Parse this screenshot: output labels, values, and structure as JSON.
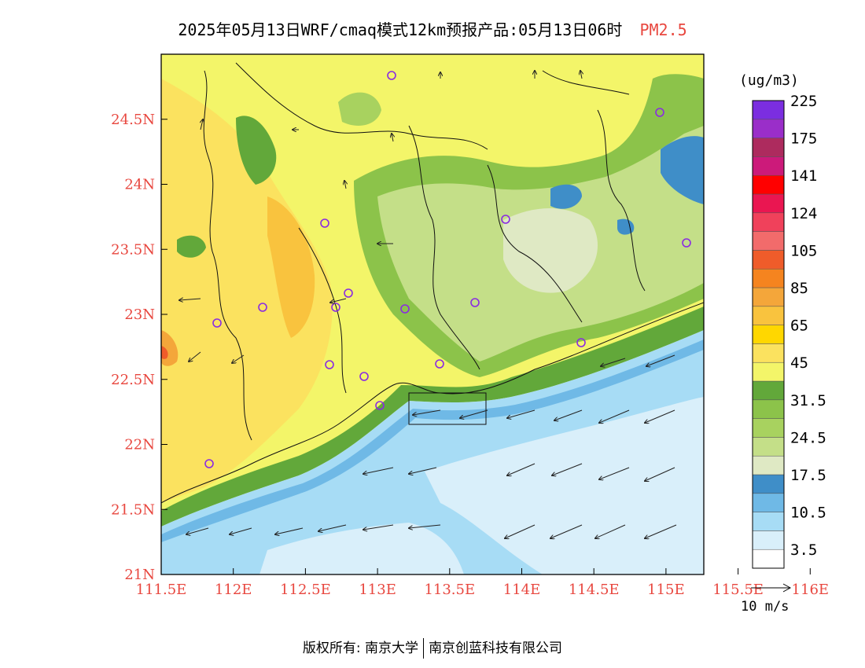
{
  "title": {
    "main": "2025年05月13日WRF/cmaq模式12km预报产品:05月13日06时",
    "variable": "PM2.5"
  },
  "axes": {
    "x_ticks": [
      "111.5E",
      "112E",
      "112.5E",
      "113E",
      "113.5E",
      "114E",
      "114.5E",
      "115E",
      "115.5E",
      "116E"
    ],
    "y_ticks": [
      "21N",
      "21.5N",
      "22N",
      "22.5N",
      "23N",
      "23.5N",
      "24N",
      "24.5N"
    ]
  },
  "colorbar": {
    "unit": "(ug/m3)",
    "bins": [
      {
        "color": "#ffffff"
      },
      {
        "color": "#d9effa"
      },
      {
        "color": "#a7dcf5"
      },
      {
        "color": "#6fb9e6"
      },
      {
        "color": "#3f8ec8"
      },
      {
        "color": "#dfe9c4"
      },
      {
        "color": "#c4df88"
      },
      {
        "color": "#a8d25f"
      },
      {
        "color": "#8cc34a"
      },
      {
        "color": "#62a83a"
      },
      {
        "color": "#f3f569"
      },
      {
        "color": "#fbe25f"
      },
      {
        "color": "#ffd700"
      },
      {
        "color": "#f9c33e"
      },
      {
        "color": "#f4a63a"
      },
      {
        "color": "#f5841f"
      },
      {
        "color": "#ef5c2a"
      },
      {
        "color": "#f26b6b"
      },
      {
        "color": "#f0415b"
      },
      {
        "color": "#ea1651"
      },
      {
        "color": "#ff0000"
      },
      {
        "color": "#cc1a7a"
      },
      {
        "color": "#ad2b5e"
      },
      {
        "color": "#9a2ec9"
      },
      {
        "color": "#7b2ee0"
      }
    ],
    "labels": [
      "3.5",
      "10.5",
      "17.5",
      "24.5",
      "31.5",
      "45",
      "65",
      "85",
      "105",
      "124",
      "141",
      "175",
      "225"
    ]
  },
  "wind_reference": {
    "label": "10 m/s"
  },
  "footer": {
    "left": "版权所有: 南京大学",
    "right": "南京创蓝科技有限公司"
  },
  "colors": {
    "axis_text": "#e8473f",
    "sea": "#a7dcf5",
    "land": "#f3f569"
  }
}
